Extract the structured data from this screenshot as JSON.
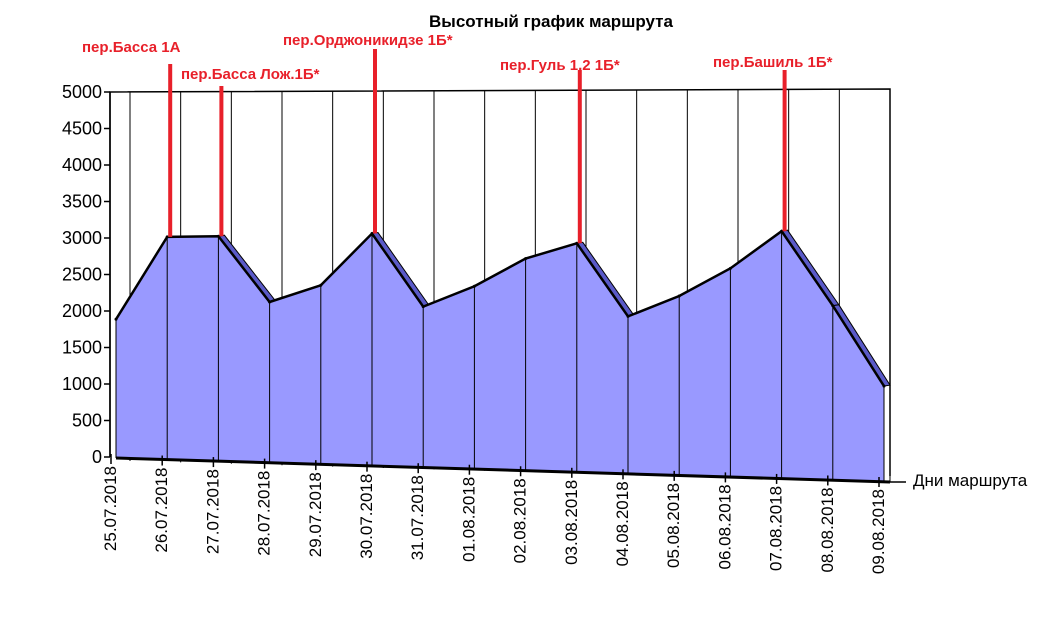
{
  "chart_data": {
    "type": "area",
    "title": "Высотный график маршрута",
    "xlabel": "Дни маршрута",
    "ylabel": "",
    "ylim": [
      0,
      5000
    ],
    "yticks": [
      0,
      500,
      1000,
      1500,
      2000,
      2500,
      3000,
      3500,
      4000,
      4500,
      5000
    ],
    "ytick_labels": [
      "0",
      "500",
      "1000",
      "1500",
      "2000",
      "2500",
      "3000",
      "3500",
      "4000",
      "4500",
      "5000"
    ],
    "grid": "vertical",
    "colors": {
      "fill": "#9999ff",
      "side": "#5a5ac8",
      "stroke": "#000000",
      "pass": "#e8202a"
    },
    "categories": [
      "25.07.2018",
      "26.07.2018",
      "27.07.2018",
      "28.07.2018",
      "29.07.2018",
      "30.07.2018",
      "31.07.2018",
      "01.08.2018",
      "02.08.2018",
      "03.08.2018",
      "04.08.2018",
      "05.08.2018",
      "06.08.2018",
      "07.08.2018",
      "08.08.2018",
      "09.08.2018"
    ],
    "series": [
      {
        "values": [
          1900,
          3050,
          3080,
          2200,
          2450,
          3180,
          2200,
          2500,
          2900,
          3130,
          2150,
          2450,
          2850,
          3380,
          2380,
          1300
        ]
      }
    ],
    "passes": [
      {
        "label": "пер.Басса 1А",
        "category": "26.07.2018",
        "height": 3050
      },
      {
        "label": "пер.Басса Лож.1Б*",
        "category": "27.07.2018",
        "height": 3080
      },
      {
        "label": "пер.Орджоникидзе 1Б*",
        "category": "30.07.2018",
        "height": 3180
      },
      {
        "label": "пер.Гуль 1,2 1Б*",
        "category": "03.08.2018",
        "height": 3130
      },
      {
        "label": "пер.Башиль 1Б*",
        "category": "07.08.2018",
        "height": 3380
      }
    ]
  }
}
